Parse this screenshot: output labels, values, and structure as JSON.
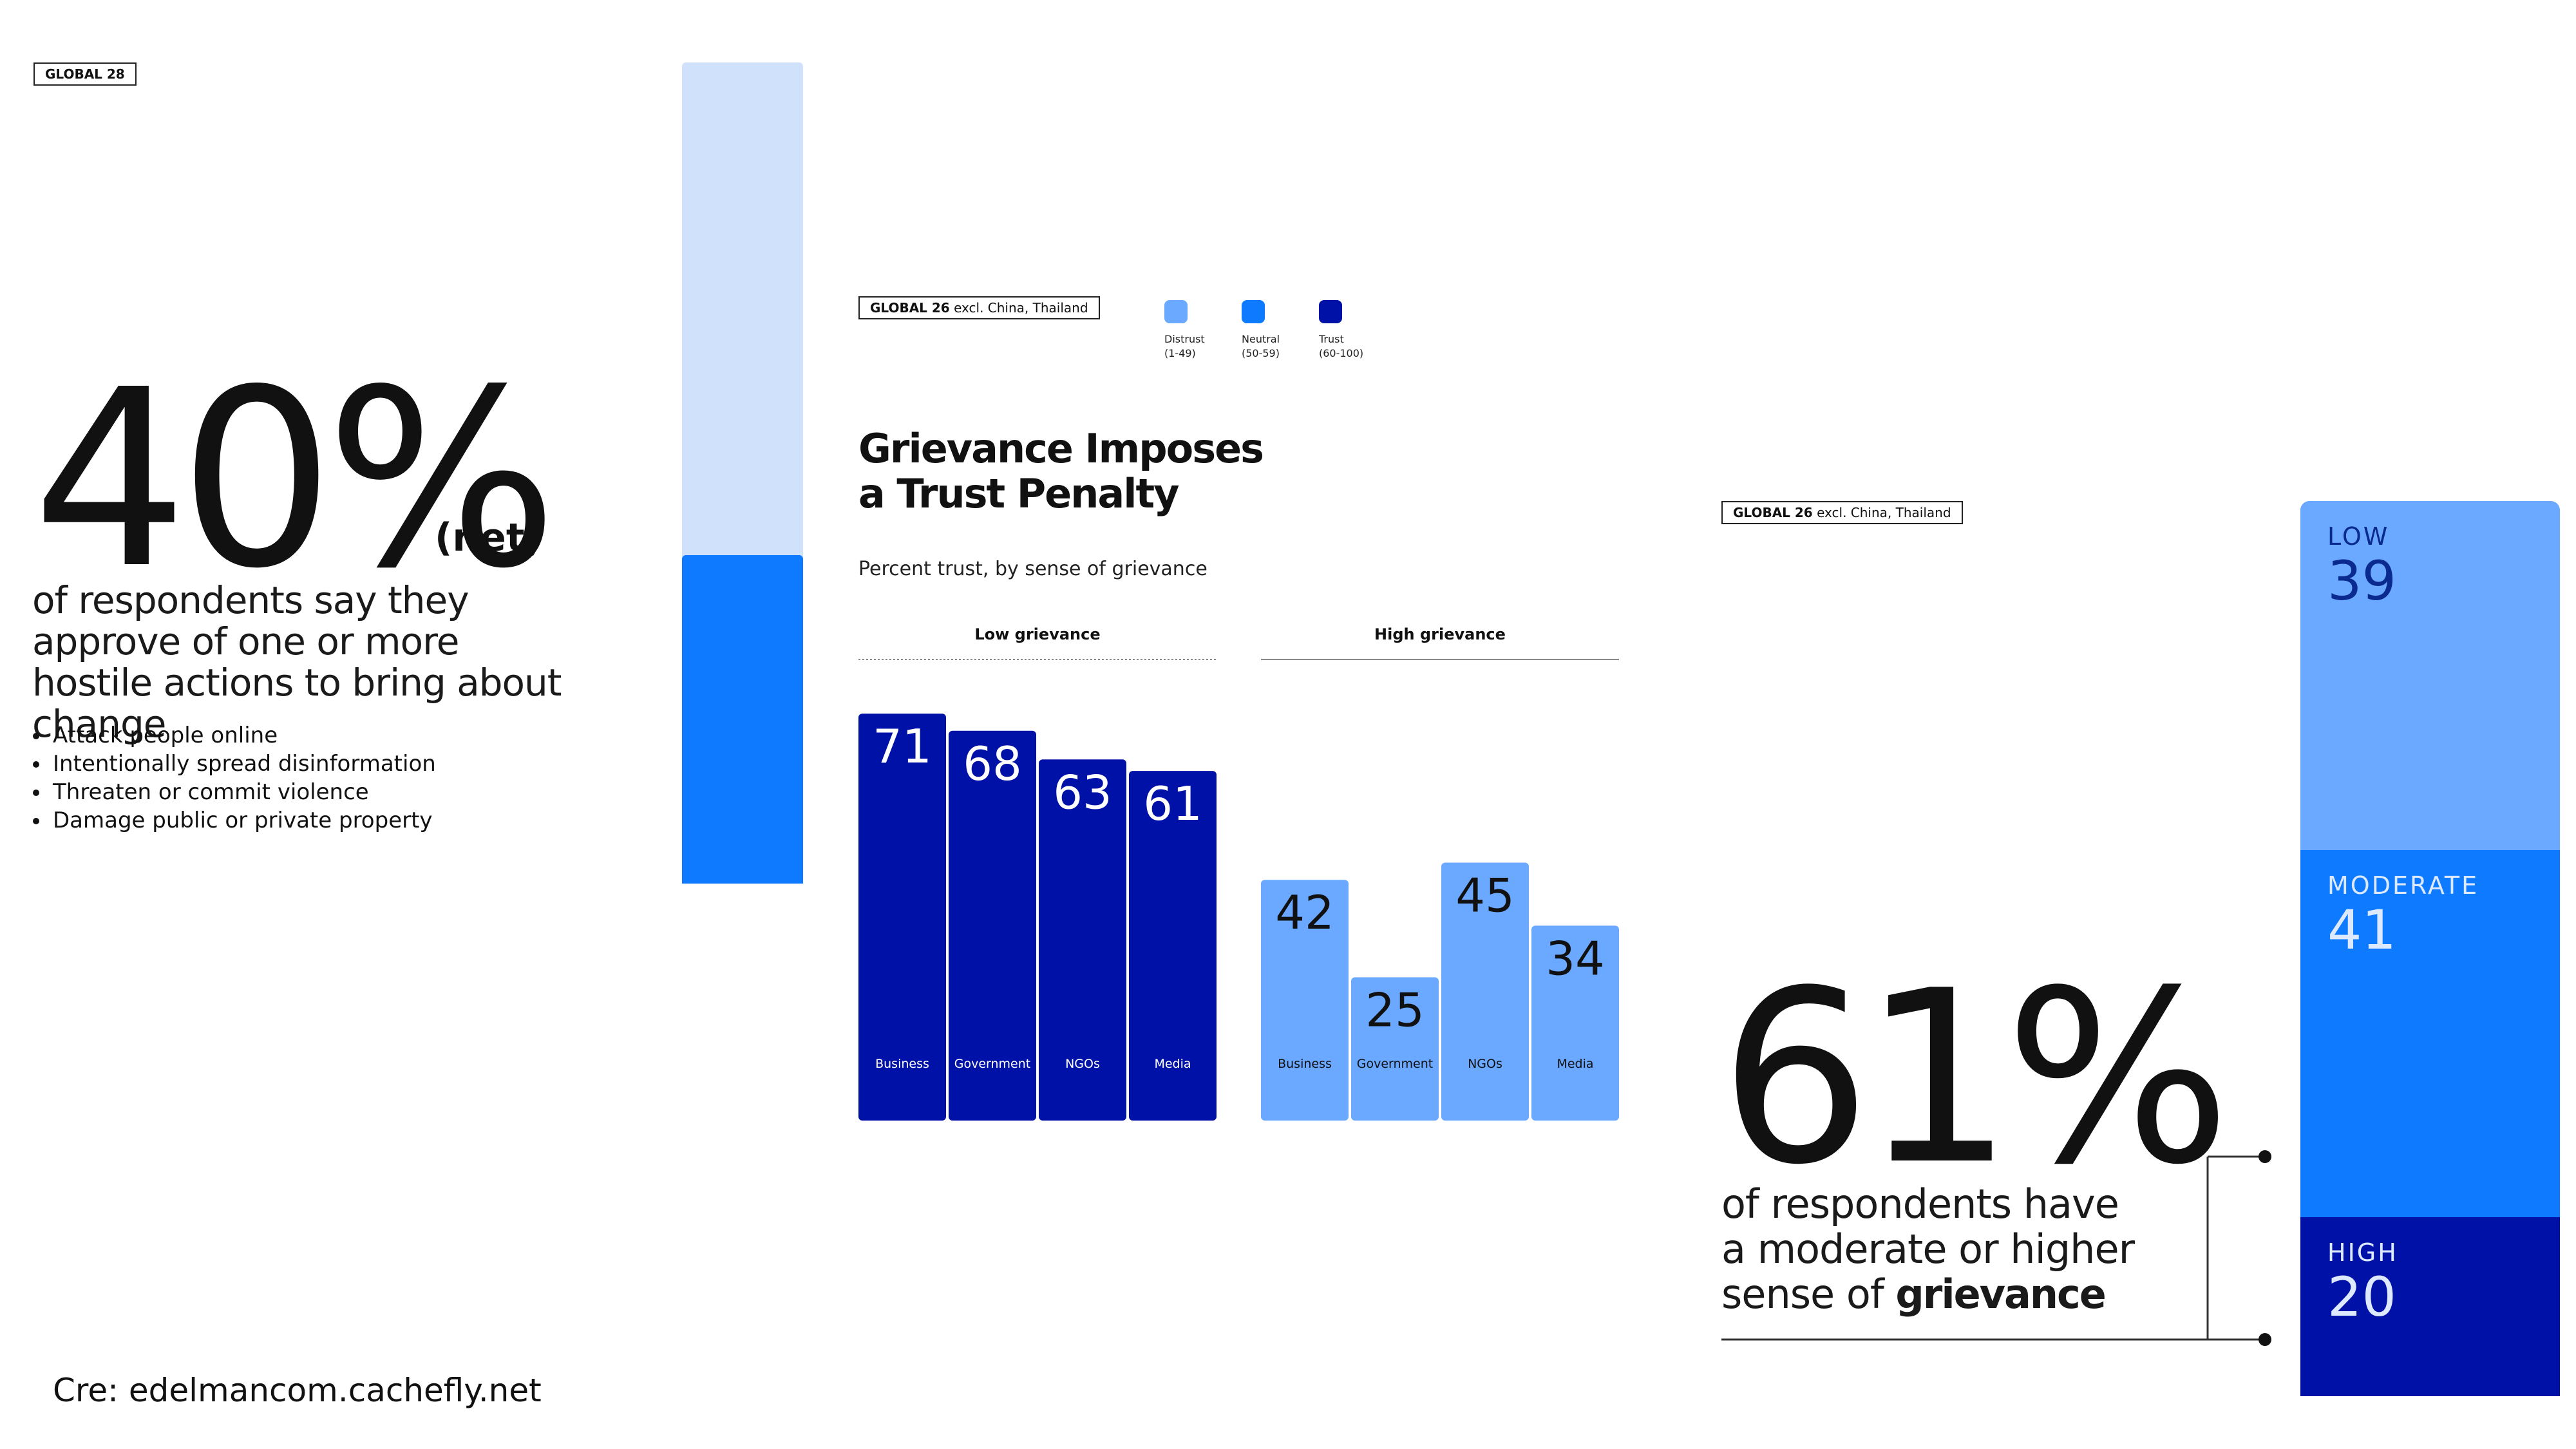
{
  "left": {
    "tag": "GLOBAL 28",
    "big_number": "40%",
    "suffix": "(net)",
    "description": "of respondents say they approve of one or more hostile actions to bring about change",
    "bullets": [
      "Attack people online",
      "Intentionally spread disinformation",
      "Threaten or commit violence",
      "Damage public or private property"
    ],
    "progress_value": 40,
    "colors": {
      "track": "#cfe1fb",
      "fill": "#0d7aff"
    }
  },
  "center": {
    "tag_bold": "GLOBAL 26",
    "tag_rest": " excl. China, Thailand",
    "legend": [
      {
        "name": "Distrust",
        "range": "(1-49)",
        "color": "#6aa9ff"
      },
      {
        "name": "Neutral",
        "range": "(50-59)",
        "color": "#0d7aff"
      },
      {
        "name": "Trust",
        "range": "(60-100)",
        "color": "#0011a8"
      }
    ],
    "title_line1": "Grievance Imposes",
    "title_line2": "a Trust Penalty",
    "subtitle": "Percent trust, by sense of grievance"
  },
  "chart_data": {
    "type": "bar",
    "title": "Grievance Imposes a Trust Penalty",
    "subtitle": "Percent trust, by sense of grievance",
    "categories": [
      "Business",
      "Government",
      "NGOs",
      "Media"
    ],
    "ylim": [
      0,
      100
    ],
    "groups": [
      {
        "name": "Low grievance",
        "values": [
          71,
          68,
          63,
          61
        ],
        "colors": [
          "#0011a8",
          "#0011a8",
          "#0011a8",
          "#0011a8"
        ],
        "value_text_color": "#ffffff"
      },
      {
        "name": "High grievance",
        "values": [
          42,
          25,
          45,
          34
        ],
        "colors": [
          "#6aa9ff",
          "#6aa9ff",
          "#6aa9ff",
          "#6aa9ff"
        ],
        "value_text_color": "#111111"
      }
    ],
    "legend_position": "top-right"
  },
  "right": {
    "tag_bold": "GLOBAL 26",
    "tag_rest": " excl. China, Thailand",
    "big_number": "61%",
    "desc_line1": "of respondents have",
    "desc_line2": "a moderate or higher",
    "desc_line3_pre": "sense of ",
    "desc_line3_bold": "grievance",
    "stack": [
      {
        "name": "LOW",
        "value": 39,
        "color": "#6aa9ff",
        "text_color": "#0a2a8f"
      },
      {
        "name": "MODERATE",
        "value": 41,
        "color": "#0d7aff",
        "text_color": "#dce9ff"
      },
      {
        "name": "HIGH",
        "value": 20,
        "color": "#0011a8",
        "text_color": "#dce9ff"
      }
    ]
  },
  "credit": "Cre: edelmancom.cachefly.net"
}
